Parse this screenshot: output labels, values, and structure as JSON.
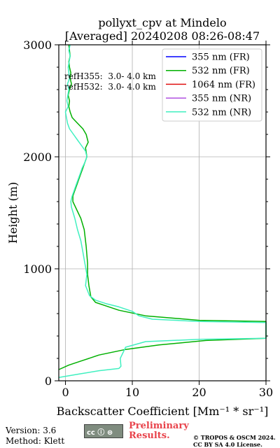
{
  "chart_data": {
    "type": "line",
    "title": "pollyxt_cpv at Mindelo",
    "subtitle": "[Averaged] 20240208 08:26-08:47",
    "xlabel": "Backscatter Coefficient [Mm⁻¹ * sr⁻¹]",
    "ylabel": "Height (m)",
    "xlim": [
      -1,
      30
    ],
    "ylim": [
      0,
      3000
    ],
    "xticks": [
      0,
      10,
      20,
      30
    ],
    "yticks": [
      0,
      1000,
      2000,
      3000
    ],
    "grid": true,
    "legend_position": "top-right",
    "annotations": [
      "refH355:  3.0- 4.0 km",
      "refH532:  3.0- 4.0 km"
    ],
    "series": [
      {
        "name": "355 nm (FR)",
        "color": "#0000ff",
        "x": [],
        "y": []
      },
      {
        "name": "532 nm (FR)",
        "color": "#00b000",
        "x": [
          -1.0,
          0.5,
          2.5,
          5.0,
          9.0,
          14.0,
          21.0,
          30.0,
          30.0,
          20.0,
          12.0,
          8.0,
          6.0,
          4.5,
          3.8,
          3.5,
          3.3,
          3.3,
          3.1,
          2.8,
          2.3,
          1.5,
          1.1,
          1.1,
          1.4,
          1.7,
          2.0,
          2.6,
          3.2,
          3.0,
          3.4,
          3.1,
          2.6,
          1.8,
          1.0,
          0.7,
          0.5,
          0.6,
          0.4,
          0.6,
          0.9,
          0.7,
          0.8,
          0.6,
          0.5,
          0.7,
          0.5
        ],
        "y": [
          100,
          140,
          180,
          230,
          280,
          320,
          360,
          380,
          530,
          540,
          580,
          630,
          670,
          700,
          750,
          850,
          950,
          1050,
          1200,
          1350,
          1450,
          1550,
          1600,
          1650,
          1700,
          1750,
          1800,
          1900,
          2000,
          2080,
          2130,
          2200,
          2250,
          2300,
          2350,
          2400,
          2450,
          2500,
          2550,
          2600,
          2650,
          2700,
          2750,
          2800,
          2850,
          2900,
          3000
        ]
      },
      {
        "name": "1064 nm (FR)",
        "color": "#e01010",
        "x": [],
        "y": []
      },
      {
        "name": "355 nm (NR)",
        "color": "#b050e0",
        "x": [],
        "y": []
      },
      {
        "name": "532 nm (NR)",
        "color": "#40f0c0",
        "x": [
          -1.0,
          2.0,
          5.0,
          8.0,
          8.3,
          8.2,
          9.0,
          12.0,
          20.0,
          30.0,
          30.0,
          20.0,
          13.0,
          11.0,
          10.0,
          8.0,
          6.0,
          4.5,
          3.6,
          3.0,
          3.2,
          2.9,
          2.6,
          2.3,
          1.8,
          1.4,
          0.9,
          0.8,
          1.0,
          1.3,
          1.6,
          1.9,
          2.2,
          2.5,
          2.9,
          3.2,
          3.0,
          2.4,
          1.8,
          1.2,
          0.6,
          0.3,
          0.0,
          0.4,
          0.2,
          0.5,
          0.3,
          0.6,
          0.4,
          0.7,
          0.5,
          0.7
        ],
        "y": [
          30,
          60,
          90,
          110,
          130,
          200,
          300,
          350,
          370,
          380,
          520,
          530,
          550,
          580,
          620,
          660,
          690,
          720,
          760,
          850,
          950,
          1050,
          1150,
          1250,
          1350,
          1450,
          1550,
          1600,
          1650,
          1700,
          1750,
          1800,
          1850,
          1900,
          1950,
          2000,
          2050,
          2100,
          2150,
          2200,
          2250,
          2300,
          2400,
          2450,
          2500,
          2600,
          2650,
          2700,
          2800,
          2900,
          2950,
          3000
        ]
      }
    ]
  },
  "footer": {
    "version": "Version: 3.6",
    "method": "Method: Klett",
    "license_badge": "cc ⓘ ⊜",
    "preliminary_line1": "Preliminary",
    "preliminary_line2": "Results.",
    "copyright_line1": "© TROPOS & OSCM 2024.",
    "copyright_line2": "CC BY SA 4.0 License."
  }
}
